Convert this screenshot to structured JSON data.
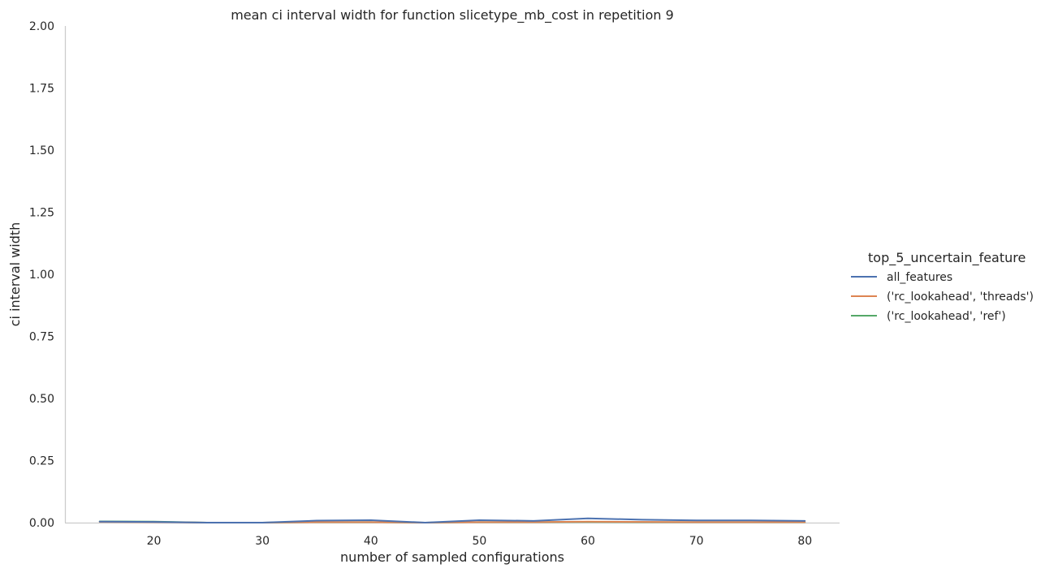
{
  "chart_data": {
    "type": "line",
    "title": "mean ci interval width for function slicetype_mb_cost in repetition 9",
    "xlabel": "number of sampled configurations",
    "ylabel": "ci interval width",
    "xlim": [
      11.8,
      83.2
    ],
    "ylim": [
      0,
      2
    ],
    "xticks": [
      20,
      30,
      40,
      50,
      60,
      70,
      80
    ],
    "yticks": [
      0,
      0.25,
      0.5,
      0.75,
      1.0,
      1.25,
      1.5,
      1.75,
      2.0
    ],
    "xtick_labels": [
      "20",
      "30",
      "40",
      "50",
      "60",
      "70",
      "80"
    ],
    "ytick_labels": [
      "0.00",
      "0.25",
      "0.50",
      "0.75",
      "1.00",
      "1.25",
      "1.50",
      "1.75",
      "2.00"
    ],
    "grid": false,
    "legend": {
      "title": "top_5_uncertain_feature",
      "placement": "right"
    },
    "series": [
      {
        "name": "all_features",
        "color": "#4c72b0",
        "x": [
          15,
          20,
          25,
          30,
          35,
          40,
          45,
          50,
          55,
          60,
          65,
          70,
          75,
          80
        ],
        "values": [
          0.004,
          0.003,
          0.0,
          0.0,
          0.008,
          0.01,
          0.0,
          0.01,
          0.007,
          0.017,
          0.012,
          0.009,
          0.009,
          0.007
        ]
      },
      {
        "name": "('rc_lookahead', 'threads')",
        "color": "#dd8452",
        "x": [
          15,
          20,
          25,
          30,
          35,
          40,
          45,
          50,
          55,
          60,
          65,
          70,
          75,
          80
        ],
        "values": [
          0.003,
          0.002,
          0.0,
          0.0,
          0.002,
          0.002,
          0.0,
          0.002,
          0.002,
          0.004,
          0.003,
          0.002,
          0.002,
          0.002
        ]
      },
      {
        "name": "('rc_lookahead', 'ref')",
        "color": "#55a868",
        "x": [
          15,
          20,
          25,
          30,
          35,
          40,
          45,
          50,
          55,
          60,
          65,
          70,
          75,
          80
        ],
        "values": [
          0.005,
          0.004,
          0.0,
          0.0,
          0.002,
          0.002,
          0.0,
          0.002,
          0.002,
          0.003,
          0.002,
          0.002,
          0.002,
          0.002
        ]
      }
    ]
  }
}
